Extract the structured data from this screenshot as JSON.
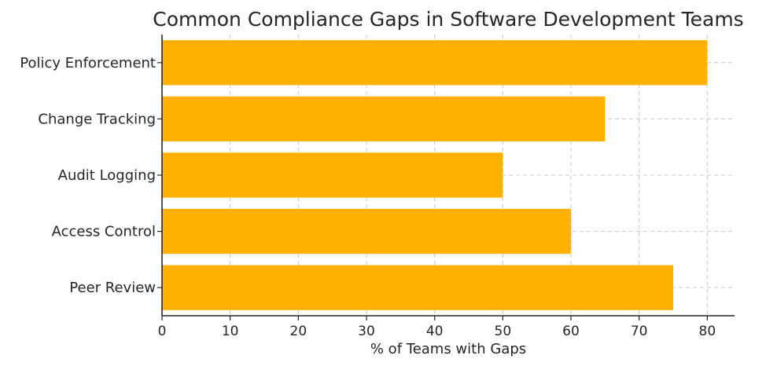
{
  "chart_data": {
    "type": "bar",
    "orientation": "horizontal",
    "title": "Common Compliance Gaps in Software Development Teams",
    "xlabel": "% of Teams with Gaps",
    "ylabel": "",
    "categories": [
      "Policy Enforcement",
      "Change Tracking",
      "Audit Logging",
      "Access Control",
      "Peer Review"
    ],
    "values": [
      80,
      65,
      50,
      60,
      75
    ],
    "xlim": [
      0,
      84
    ],
    "xticks": [
      0,
      10,
      20,
      30,
      40,
      50,
      60,
      70,
      80
    ],
    "grid": true,
    "bar_color": "#FFB000"
  }
}
